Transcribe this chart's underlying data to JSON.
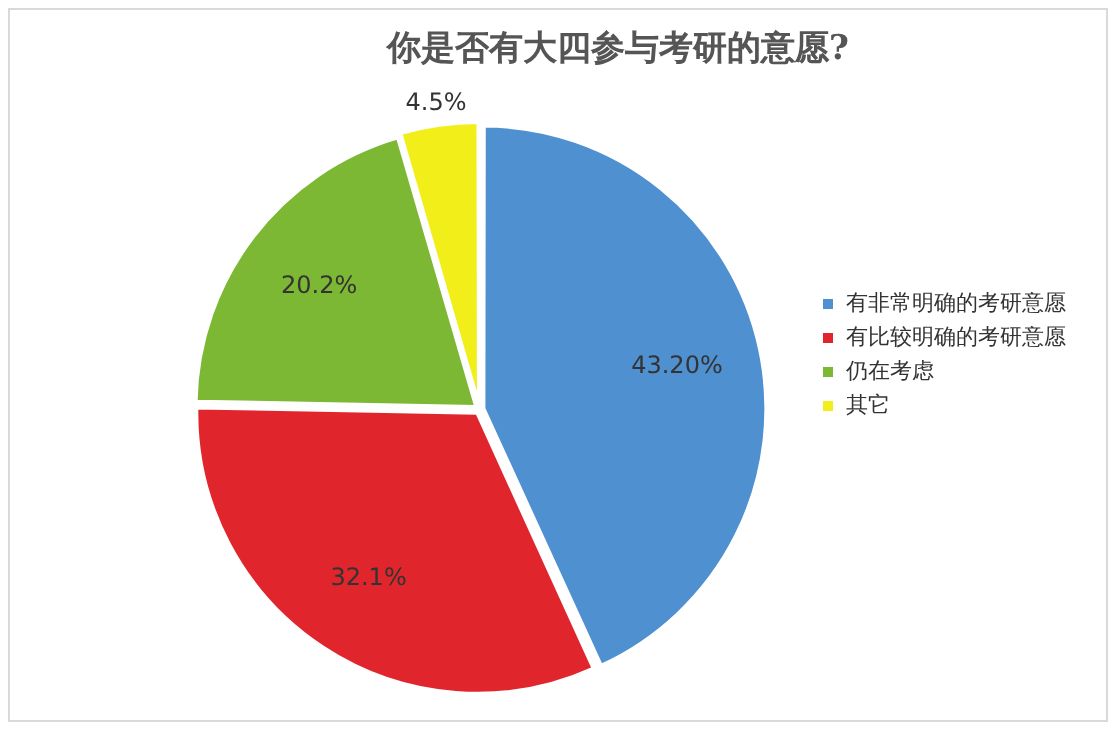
{
  "chart_data": {
    "type": "pie",
    "title": "你是否有大四参与考研的意愿?",
    "categories": [
      "有非常明确的考研意愿",
      "有比较明确的考研意愿",
      "仍在考虑",
      "其它"
    ],
    "values": [
      43.2,
      32.1,
      20.2,
      4.5
    ],
    "value_labels": [
      "43.20%",
      "32.1%",
      "20.2%",
      "4.5%"
    ],
    "colors": [
      "#4f90d0",
      "#e0262c",
      "#7cb833",
      "#f2ee1a"
    ],
    "legend": "right"
  }
}
